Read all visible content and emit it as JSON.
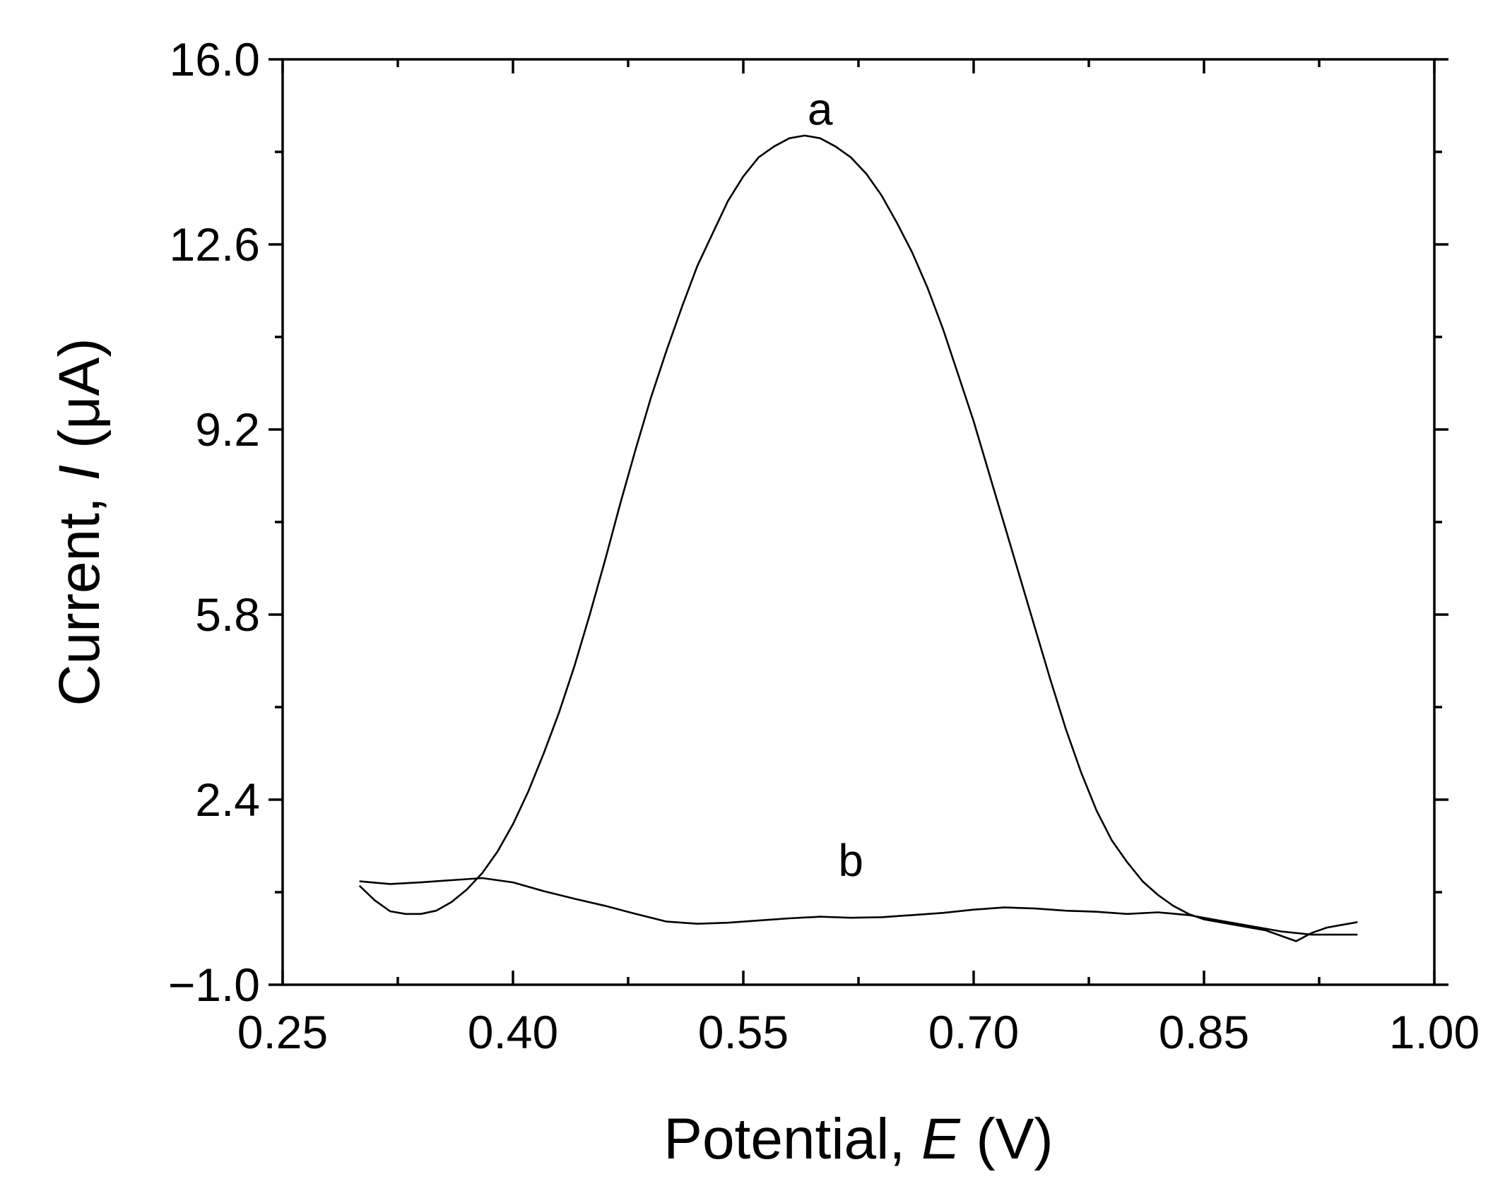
{
  "chart_data": {
    "type": "line",
    "xlabel": {
      "prefix": "Potential, ",
      "symbol": "E",
      "suffix": " (V)"
    },
    "ylabel": {
      "prefix": "Current, ",
      "symbol": "I",
      "suffix": " (μA)"
    },
    "xlim": [
      0.25,
      1.0
    ],
    "ylim": [
      -1.0,
      16.0
    ],
    "x_ticks": [
      0.25,
      0.4,
      0.55,
      0.7,
      0.85,
      1.0
    ],
    "x_tick_labels": [
      "0.25",
      "0.40",
      "0.55",
      "0.70",
      "0.85",
      "1.00"
    ],
    "y_ticks": [
      -1.0,
      2.4,
      5.8,
      9.2,
      12.6,
      16.0
    ],
    "y_tick_labels": [
      "−1.0",
      "2.4",
      "5.8",
      "9.2",
      "12.6",
      "16.0"
    ],
    "grid": false,
    "legend": "none",
    "series": [
      {
        "label": "a",
        "label_at": [
          0.6,
          14.8
        ],
        "x": [
          0.3,
          0.31,
          0.32,
          0.33,
          0.34,
          0.35,
          0.36,
          0.37,
          0.38,
          0.39,
          0.4,
          0.41,
          0.42,
          0.43,
          0.44,
          0.45,
          0.46,
          0.47,
          0.48,
          0.49,
          0.5,
          0.51,
          0.52,
          0.53,
          0.54,
          0.55,
          0.56,
          0.57,
          0.58,
          0.59,
          0.6,
          0.61,
          0.62,
          0.63,
          0.64,
          0.65,
          0.66,
          0.67,
          0.68,
          0.69,
          0.7,
          0.71,
          0.72,
          0.73,
          0.74,
          0.75,
          0.76,
          0.77,
          0.78,
          0.79,
          0.8,
          0.81,
          0.82,
          0.83,
          0.84,
          0.85,
          0.86,
          0.87,
          0.88,
          0.89,
          0.9,
          0.91,
          0.92,
          0.93,
          0.94,
          0.95
        ],
        "y": [
          0.82,
          0.55,
          0.35,
          0.3,
          0.3,
          0.36,
          0.52,
          0.75,
          1.05,
          1.45,
          1.95,
          2.55,
          3.25,
          4.0,
          4.85,
          5.8,
          6.8,
          7.85,
          8.85,
          9.8,
          10.65,
          11.45,
          12.2,
          12.8,
          13.4,
          13.85,
          14.2,
          14.4,
          14.55,
          14.6,
          14.55,
          14.4,
          14.2,
          13.9,
          13.5,
          13.0,
          12.45,
          11.8,
          11.05,
          10.2,
          9.35,
          8.4,
          7.45,
          6.5,
          5.55,
          4.6,
          3.7,
          2.9,
          2.2,
          1.65,
          1.25,
          0.9,
          0.65,
          0.45,
          0.3,
          0.2,
          0.15,
          0.1,
          0.05,
          0.0,
          -0.1,
          -0.2,
          -0.05,
          0.05,
          0.1,
          0.15
        ]
      },
      {
        "label": "b",
        "label_at": [
          0.62,
          1.0
        ],
        "x": [
          0.3,
          0.32,
          0.34,
          0.36,
          0.38,
          0.4,
          0.42,
          0.44,
          0.46,
          0.48,
          0.5,
          0.52,
          0.54,
          0.56,
          0.58,
          0.6,
          0.62,
          0.64,
          0.66,
          0.68,
          0.7,
          0.72,
          0.74,
          0.76,
          0.78,
          0.8,
          0.82,
          0.84,
          0.86,
          0.88,
          0.9,
          0.92,
          0.94,
          0.95
        ],
        "y": [
          0.9,
          0.85,
          0.88,
          0.92,
          0.96,
          0.88,
          0.72,
          0.58,
          0.45,
          0.3,
          0.16,
          0.12,
          0.14,
          0.18,
          0.22,
          0.25,
          0.23,
          0.24,
          0.28,
          0.32,
          0.38,
          0.42,
          0.4,
          0.36,
          0.34,
          0.3,
          0.33,
          0.28,
          0.18,
          0.08,
          -0.02,
          -0.08,
          -0.08,
          -0.08
        ]
      }
    ]
  }
}
